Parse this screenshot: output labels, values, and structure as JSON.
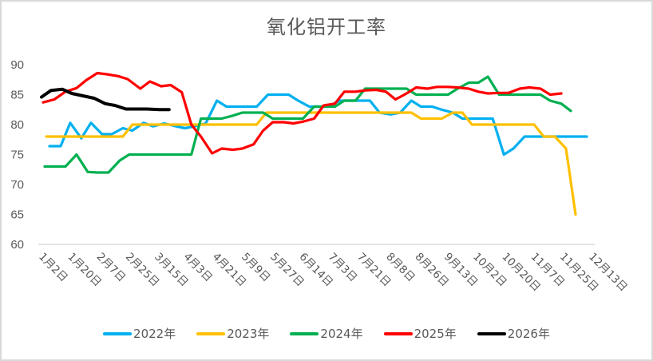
{
  "chart_data": {
    "type": "line",
    "title": "氧化铝开工率",
    "xlabel": "",
    "ylabel": "",
    "ylim": [
      60,
      90
    ],
    "yticks": [
      60,
      65,
      70,
      75,
      80,
      85,
      90
    ],
    "grid": false,
    "legend_position": "bottom",
    "x_tick_labels": [
      "1月2日",
      "1月20日",
      "2月7日",
      "2月25日",
      "3月15日",
      "4月3日",
      "4月21日",
      "5月9日",
      "5月27日",
      "6月14日",
      "7月3日",
      "7月21日",
      "8月8日",
      "8月26日",
      "9月13日",
      "10月2日",
      "10月20日",
      "11月7日",
      "11月25日",
      "12月13日"
    ],
    "x_note": "x values are day offsets from 1月2日 (0) to 12月13日 (345)",
    "series": [
      {
        "name": "2022年",
        "color": "#00b0f0",
        "points": [
          [
            5,
            76.4
          ],
          [
            12,
            76.4
          ],
          [
            18,
            80.3
          ],
          [
            25,
            77.7
          ],
          [
            31,
            80.3
          ],
          [
            38,
            78.4
          ],
          [
            44,
            78.4
          ],
          [
            51,
            79.4
          ],
          [
            57,
            79
          ],
          [
            64,
            80.3
          ],
          [
            70,
            79.7
          ],
          [
            77,
            80.2
          ],
          [
            83,
            79.8
          ],
          [
            90,
            79.4
          ],
          [
            96,
            79.7
          ],
          [
            103,
            80.2
          ],
          [
            110,
            84
          ],
          [
            116,
            83
          ],
          [
            122,
            83
          ],
          [
            129,
            83
          ],
          [
            135,
            83
          ],
          [
            142,
            85
          ],
          [
            148,
            85
          ],
          [
            155,
            85
          ],
          [
            161,
            84
          ],
          [
            168,
            83
          ],
          [
            174,
            83
          ],
          [
            180,
            83
          ],
          [
            187,
            84
          ],
          [
            193,
            84
          ],
          [
            200,
            84
          ],
          [
            206,
            84
          ],
          [
            212,
            82
          ],
          [
            219,
            81.7
          ],
          [
            225,
            82
          ],
          [
            232,
            84
          ],
          [
            238,
            83
          ],
          [
            245,
            83
          ],
          [
            251,
            82.5
          ],
          [
            258,
            82
          ],
          [
            264,
            81
          ],
          [
            270,
            81
          ],
          [
            277,
            81
          ],
          [
            283,
            81
          ],
          [
            290,
            75
          ],
          [
            296,
            76
          ],
          [
            303,
            78
          ],
          [
            309,
            78
          ],
          [
            316,
            78
          ],
          [
            322,
            78
          ],
          [
            329,
            78
          ],
          [
            336,
            78
          ],
          [
            342,
            78
          ]
        ]
      },
      {
        "name": "2023年",
        "color": "#ffc000",
        "points": [
          [
            3,
            78
          ],
          [
            12,
            78
          ],
          [
            25,
            78
          ],
          [
            38,
            78
          ],
          [
            51,
            78
          ],
          [
            57,
            80
          ],
          [
            70,
            80
          ],
          [
            83,
            80
          ],
          [
            96,
            80
          ],
          [
            109,
            80
          ],
          [
            122,
            80
          ],
          [
            135,
            80
          ],
          [
            141,
            82
          ],
          [
            154,
            82
          ],
          [
            167,
            82
          ],
          [
            180,
            82
          ],
          [
            193,
            82
          ],
          [
            206,
            82
          ],
          [
            219,
            82
          ],
          [
            232,
            82
          ],
          [
            238,
            81
          ],
          [
            251,
            81
          ],
          [
            258,
            82
          ],
          [
            264,
            82
          ],
          [
            270,
            80
          ],
          [
            283,
            80
          ],
          [
            296,
            80
          ],
          [
            309,
            80
          ],
          [
            315,
            78
          ],
          [
            322,
            78
          ],
          [
            329,
            76
          ],
          [
            335,
            65
          ]
        ]
      },
      {
        "name": "2024年",
        "color": "#00b050",
        "points": [
          [
            2,
            73
          ],
          [
            9,
            73
          ],
          [
            15,
            73
          ],
          [
            22,
            75
          ],
          [
            29,
            72.1
          ],
          [
            35,
            72
          ],
          [
            42,
            72
          ],
          [
            49,
            74
          ],
          [
            55,
            75
          ],
          [
            62,
            75
          ],
          [
            68,
            75
          ],
          [
            75,
            75
          ],
          [
            81,
            75
          ],
          [
            88,
            75
          ],
          [
            94,
            75
          ],
          [
            100,
            81
          ],
          [
            107,
            81
          ],
          [
            113,
            81
          ],
          [
            120,
            81.5
          ],
          [
            126,
            82
          ],
          [
            133,
            82
          ],
          [
            139,
            82
          ],
          [
            145,
            81
          ],
          [
            152,
            81
          ],
          [
            158,
            81
          ],
          [
            164,
            81
          ],
          [
            171,
            83
          ],
          [
            177,
            83
          ],
          [
            184,
            83
          ],
          [
            190,
            84
          ],
          [
            197,
            84
          ],
          [
            203,
            86
          ],
          [
            210,
            86
          ],
          [
            216,
            86
          ],
          [
            222,
            86
          ],
          [
            229,
            86
          ],
          [
            235,
            85
          ],
          [
            242,
            85
          ],
          [
            248,
            85
          ],
          [
            255,
            85
          ],
          [
            261,
            86
          ],
          [
            268,
            87
          ],
          [
            274,
            87
          ],
          [
            280,
            88
          ],
          [
            287,
            85
          ],
          [
            293,
            85
          ],
          [
            300,
            85
          ],
          [
            306,
            85
          ],
          [
            313,
            85
          ],
          [
            319,
            84
          ],
          [
            326,
            83.5
          ],
          [
            332,
            82.3
          ]
        ]
      },
      {
        "name": "2025年",
        "color": "#ff0000",
        "points": [
          [
            1,
            83.7
          ],
          [
            8,
            84.2
          ],
          [
            15,
            85.5
          ],
          [
            22,
            86.1
          ],
          [
            28,
            87.4
          ],
          [
            35,
            88.6
          ],
          [
            41,
            88.4
          ],
          [
            48,
            88.1
          ],
          [
            54,
            87.6
          ],
          [
            62,
            86
          ],
          [
            68,
            87.2
          ],
          [
            75,
            86.4
          ],
          [
            81,
            86.6
          ],
          [
            88,
            85.4
          ],
          [
            94,
            80
          ],
          [
            100,
            78
          ],
          [
            107,
            75.2
          ],
          [
            113,
            76
          ],
          [
            120,
            75.8
          ],
          [
            126,
            76
          ],
          [
            133,
            76.7
          ],
          [
            139,
            79
          ],
          [
            145,
            80.4
          ],
          [
            152,
            80.4
          ],
          [
            158,
            80.2
          ],
          [
            164,
            80.5
          ],
          [
            171,
            81
          ],
          [
            177,
            83.2
          ],
          [
            184,
            83.5
          ],
          [
            190,
            85.5
          ],
          [
            197,
            85.5
          ],
          [
            203,
            85.7
          ],
          [
            210,
            85.8
          ],
          [
            216,
            85.5
          ],
          [
            222,
            84.2
          ],
          [
            229,
            85.2
          ],
          [
            235,
            86.2
          ],
          [
            242,
            86
          ],
          [
            248,
            86.3
          ],
          [
            255,
            86.3
          ],
          [
            261,
            86.2
          ],
          [
            268,
            86
          ],
          [
            274,
            85.5
          ],
          [
            280,
            85.2
          ],
          [
            287,
            85.3
          ],
          [
            293,
            85.3
          ],
          [
            300,
            86
          ],
          [
            306,
            86.2
          ],
          [
            313,
            86
          ],
          [
            319,
            85
          ],
          [
            326,
            85.2
          ]
        ]
      },
      {
        "name": "2026年",
        "color": "#000000",
        "points": [
          [
            0,
            84.6
          ],
          [
            6,
            85.7
          ],
          [
            13,
            85.9
          ],
          [
            19,
            85.2
          ],
          [
            26,
            84.8
          ],
          [
            33,
            84.4
          ],
          [
            40,
            83.5
          ],
          [
            46,
            83.2
          ],
          [
            53,
            82.6
          ],
          [
            60,
            82.6
          ],
          [
            66,
            82.6
          ],
          [
            74,
            82.5
          ],
          [
            80,
            82.5
          ]
        ]
      }
    ]
  }
}
